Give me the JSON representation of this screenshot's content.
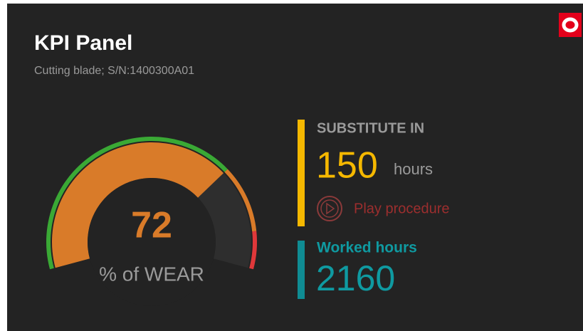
{
  "header": {
    "title": "KPI Panel",
    "subtitle": "Cutting blade; S/N:1400300A01"
  },
  "chart_data": {
    "type": "gauge",
    "value": 72,
    "label": "% of WEAR",
    "ylim": [
      0,
      100
    ],
    "color": "#d97b29",
    "bands": [
      {
        "from": 0,
        "to": 72,
        "color": "#3aa935"
      },
      {
        "from": 72,
        "to": 90,
        "color": "#d97b29"
      },
      {
        "from": 90,
        "to": 100,
        "color": "#e0383a"
      }
    ]
  },
  "substitute": {
    "title": "SUBSTITUTE IN",
    "value": 150,
    "unit": "hours",
    "action": "Play procedure"
  },
  "worked": {
    "title": "Worked hours",
    "value": 2160
  }
}
